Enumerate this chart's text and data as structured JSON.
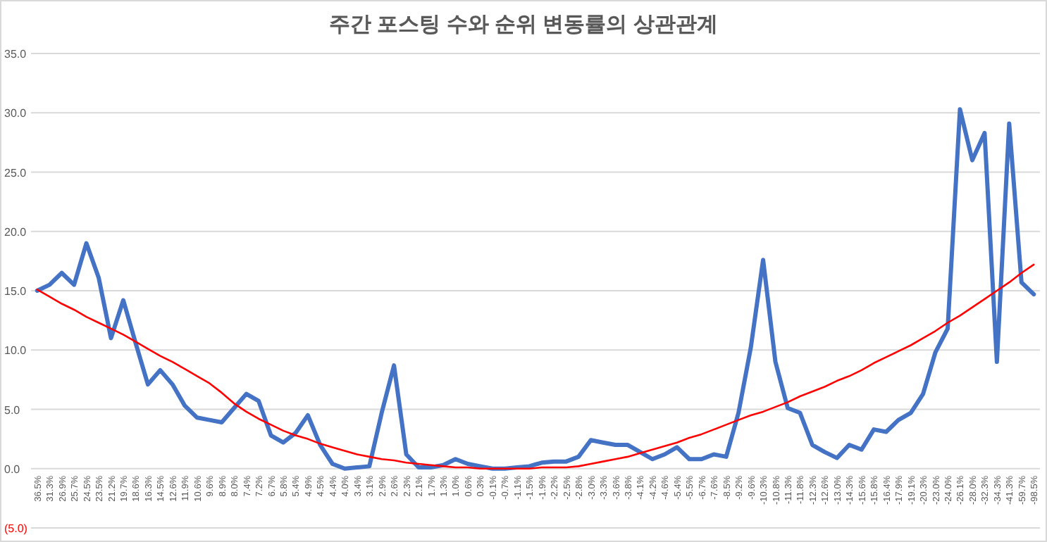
{
  "chart_data": {
    "type": "line",
    "title": "주간 포스팅 수와 순위 변동률의 상관관계",
    "categories": [
      "36.5%",
      "31.3%",
      "26.9%",
      "25.7%",
      "24.5%",
      "23.5%",
      "21.2%",
      "19.7%",
      "18.6%",
      "16.3%",
      "14.5%",
      "12.6%",
      "11.9%",
      "10.6%",
      "9.6%",
      "8.9%",
      "8.0%",
      "7.4%",
      "7.2%",
      "6.7%",
      "5.8%",
      "5.4%",
      "4.9%",
      "4.5%",
      "4.4%",
      "4.0%",
      "3.4%",
      "3.1%",
      "2.9%",
      "2.6%",
      "2.3%",
      "2.1%",
      "1.7%",
      "1.3%",
      "1.0%",
      "0.6%",
      "0.3%",
      "-0.1%",
      "-0.7%",
      "-1.1%",
      "-1.5%",
      "-1.9%",
      "-2.2%",
      "-2.5%",
      "-2.8%",
      "-3.0%",
      "-3.3%",
      "-3.6%",
      "-3.8%",
      "-4.1%",
      "-4.2%",
      "-4.6%",
      "-5.4%",
      "-5.5%",
      "-6.7%",
      "-7.6%",
      "-8.5%",
      "-9.2%",
      "-9.6%",
      "-10.3%",
      "-10.8%",
      "-11.3%",
      "-11.8%",
      "-12.3%",
      "-12.6%",
      "-13.0%",
      "-14.3%",
      "-15.6%",
      "-15.8%",
      "-16.4%",
      "-17.9%",
      "-19.1%",
      "-20.3%",
      "-23.0%",
      "-24.0%",
      "-26.1%",
      "-28.0%",
      "-32.3%",
      "-34.3%",
      "-41.3%",
      "-59.7%",
      "-98.5%"
    ],
    "series": [
      {
        "color": "#4472c4",
        "values": [
          15.0,
          15.5,
          16.5,
          15.5,
          19.0,
          16.1,
          11.0,
          14.2,
          10.6,
          7.1,
          8.3,
          7.1,
          5.3,
          4.3,
          4.1,
          3.9,
          5.1,
          6.3,
          5.7,
          2.8,
          2.2,
          3.0,
          4.5,
          2.0,
          0.4,
          0.0,
          0.1,
          0.2,
          4.7,
          8.7,
          1.2,
          0.1,
          0.1,
          0.3,
          0.8,
          0.4,
          0.2,
          0.0,
          0.0,
          0.1,
          0.2,
          0.5,
          0.6,
          0.6,
          1.0,
          2.4,
          2.2,
          2.0,
          2.0,
          1.4,
          0.8,
          1.2,
          1.8,
          0.8,
          0.8,
          1.2,
          1.0,
          4.7,
          10.2,
          17.6,
          9.0,
          5.1,
          4.7,
          2.0,
          1.4,
          0.9,
          2.0,
          1.6,
          3.3,
          3.1,
          4.1,
          4.7,
          6.3,
          9.8,
          11.8,
          30.3,
          26.0,
          28.3,
          9.0,
          29.1,
          15.7,
          14.7
        ]
      },
      {
        "color": "#ff0000",
        "values": [
          15.1,
          14.5,
          13.9,
          13.4,
          12.8,
          12.3,
          11.8,
          11.3,
          10.7,
          10.1,
          9.5,
          9.0,
          8.4,
          7.8,
          7.2,
          6.4,
          5.5,
          4.8,
          4.2,
          3.7,
          3.2,
          2.8,
          2.5,
          2.1,
          1.8,
          1.5,
          1.2,
          1.0,
          0.8,
          0.7,
          0.5,
          0.4,
          0.3,
          0.2,
          0.1,
          0.1,
          0.0,
          0.0,
          0.0,
          0.0,
          0.0,
          0.1,
          0.1,
          0.1,
          0.2,
          0.4,
          0.6,
          0.8,
          1.0,
          1.3,
          1.6,
          1.9,
          2.2,
          2.6,
          2.9,
          3.3,
          3.7,
          4.1,
          4.5,
          4.8,
          5.2,
          5.6,
          6.1,
          6.5,
          6.9,
          7.4,
          7.8,
          8.3,
          8.9,
          9.4,
          9.9,
          10.4,
          11.0,
          11.6,
          12.3,
          12.9,
          13.6,
          14.3,
          15.0,
          15.7,
          16.5,
          17.2
        ]
      }
    ],
    "ylim": [
      -5,
      35
    ],
    "yticks": [
      {
        "value": -5,
        "label": "(5.0)"
      },
      {
        "value": 0,
        "label": "0.0"
      },
      {
        "value": 5,
        "label": "5.0"
      },
      {
        "value": 10,
        "label": "10.0"
      },
      {
        "value": 15,
        "label": "15.0"
      },
      {
        "value": 20,
        "label": "20.0"
      },
      {
        "value": 25,
        "label": "25.0"
      },
      {
        "value": 30,
        "label": "30.0"
      },
      {
        "value": 35,
        "label": "35.0"
      }
    ],
    "grid": "y"
  }
}
